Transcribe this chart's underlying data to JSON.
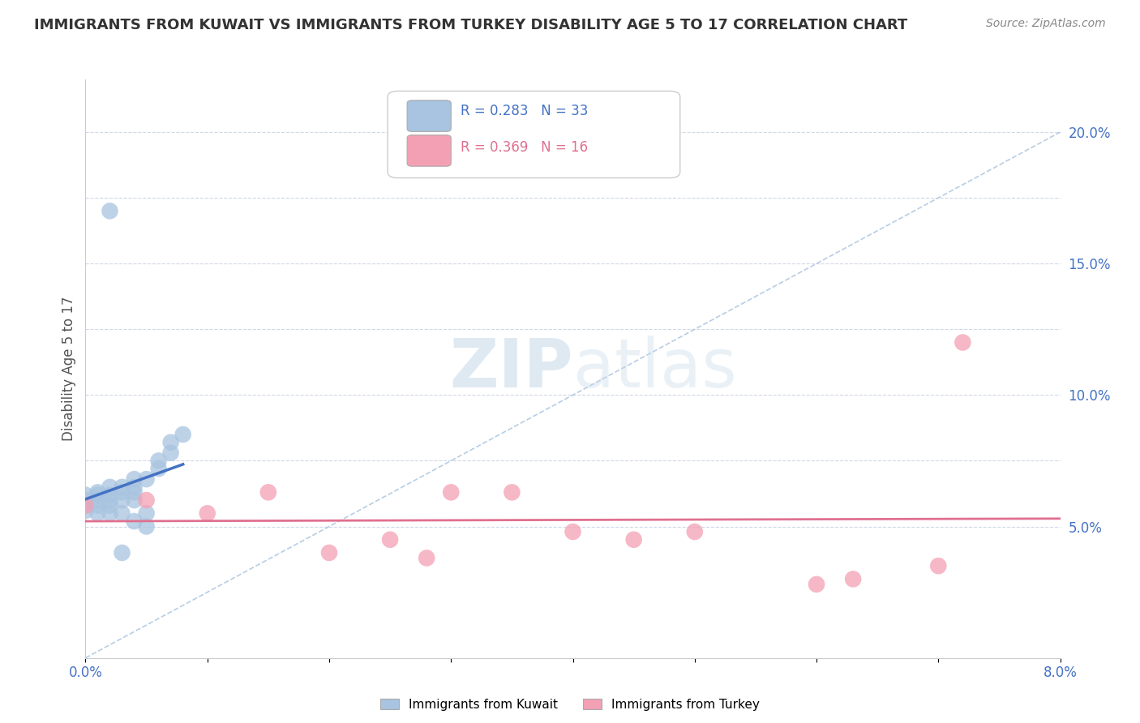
{
  "title": "IMMIGRANTS FROM KUWAIT VS IMMIGRANTS FROM TURKEY DISABILITY AGE 5 TO 17 CORRELATION CHART",
  "source": "Source: ZipAtlas.com",
  "ylabel": "Disability Age 5 to 17",
  "xlim": [
    0.0,
    0.08
  ],
  "ylim": [
    0.0,
    0.22
  ],
  "r_kuwait": 0.283,
  "n_kuwait": 33,
  "r_turkey": 0.369,
  "n_turkey": 16,
  "kuwait_color": "#a8c4e0",
  "turkey_color": "#f4a0b4",
  "kuwait_line_color": "#4472c4",
  "turkey_line_color": "#e07090",
  "diagonal_color": "#b0c8e0",
  "kuwait_points_x": [
    0.0,
    0.0,
    0.0,
    0.0,
    0.001,
    0.001,
    0.001,
    0.001,
    0.001,
    0.002,
    0.002,
    0.002,
    0.002,
    0.002,
    0.003,
    0.003,
    0.003,
    0.003,
    0.003,
    0.004,
    0.004,
    0.004,
    0.004,
    0.004,
    0.005,
    0.005,
    0.005,
    0.006,
    0.006,
    0.007,
    0.007,
    0.008,
    0.002
  ],
  "kuwait_points_y": [
    0.06,
    0.058,
    0.062,
    0.056,
    0.062,
    0.058,
    0.055,
    0.06,
    0.063,
    0.06,
    0.058,
    0.062,
    0.055,
    0.065,
    0.065,
    0.063,
    0.06,
    0.055,
    0.04,
    0.065,
    0.063,
    0.052,
    0.06,
    0.068,
    0.068,
    0.055,
    0.05,
    0.072,
    0.075,
    0.078,
    0.082,
    0.085,
    0.17
  ],
  "turkey_points_x": [
    0.0,
    0.005,
    0.01,
    0.015,
    0.02,
    0.025,
    0.028,
    0.03,
    0.035,
    0.04,
    0.045,
    0.05,
    0.06,
    0.063,
    0.07,
    0.072
  ],
  "turkey_points_y": [
    0.058,
    0.06,
    0.055,
    0.063,
    0.04,
    0.045,
    0.038,
    0.063,
    0.063,
    0.048,
    0.045,
    0.048,
    0.028,
    0.03,
    0.035,
    0.12
  ],
  "watermark_zip": "ZIP",
  "watermark_atlas": "atlas",
  "background_color": "#ffffff",
  "grid_color": "#d0d8e8",
  "legend_kuwait_label": "R = 0.283   N = 33",
  "legend_turkey_label": "R = 0.369   N = 16",
  "bottom_legend_kuwait": "Immigrants from Kuwait",
  "bottom_legend_turkey": "Immigrants from Turkey"
}
